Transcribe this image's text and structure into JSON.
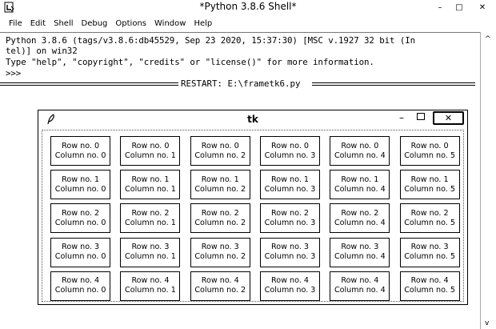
{
  "window": {
    "title": "*Python 3.8.6 Shell*",
    "app_icon": "idle-icon",
    "controls": {
      "minimize": "–",
      "maximize": "□",
      "close": "✕"
    }
  },
  "menu": [
    "File",
    "Edit",
    "Shell",
    "Debug",
    "Options",
    "Window",
    "Help"
  ],
  "shell": {
    "lines": [
      "Python 3.8.6 (tags/v3.8.6:db45529, Sep 23 2020, 15:37:30) [MSC v.1927 32 bit (In",
      "tel)] on win32",
      "Type \"help\", \"copyright\", \"credits\" or \"license()\" for more information.",
      ">>>"
    ],
    "restart": "RESTART: E:\\frametk6.py"
  },
  "tk": {
    "title": "tk",
    "icon": "feather-icon",
    "grid": [
      [
        [
          "Row no. 0",
          "Column no. 0"
        ],
        [
          "Row no. 0",
          "Column no. 1"
        ],
        [
          "Row no. 0",
          "Column no. 2"
        ],
        [
          "Row no. 0",
          "Column no. 3"
        ],
        [
          "Row no. 0",
          "Column no. 4"
        ],
        [
          "Row no. 0",
          "Column no. 5"
        ]
      ],
      [
        [
          "Row no. 1",
          "Column no. 0"
        ],
        [
          "Row no. 1",
          "Column no. 1"
        ],
        [
          "Row no. 1",
          "Column no. 2"
        ],
        [
          "Row no. 1",
          "Column no. 3"
        ],
        [
          "Row no. 1",
          "Column no. 4"
        ],
        [
          "Row no. 1",
          "Column no. 5"
        ]
      ],
      [
        [
          "Row no. 2",
          "Column no. 0"
        ],
        [
          "Row no. 2",
          "Column no. 1"
        ],
        [
          "Row no. 2",
          "Column no. 2"
        ],
        [
          "Row no. 2",
          "Column no. 3"
        ],
        [
          "Row no. 2",
          "Column no. 4"
        ],
        [
          "Row no. 2",
          "Column no. 5"
        ]
      ],
      [
        [
          "Row no. 3",
          "Column no. 0"
        ],
        [
          "Row no. 3",
          "Column no. 1"
        ],
        [
          "Row no. 3",
          "Column no. 2"
        ],
        [
          "Row no. 3",
          "Column no. 3"
        ],
        [
          "Row no. 3",
          "Column no. 4"
        ],
        [
          "Row no. 3",
          "Column no. 5"
        ]
      ],
      [
        [
          "Row no. 4",
          "Column no. 0"
        ],
        [
          "Row no. 4",
          "Column no. 1"
        ],
        [
          "Row no. 4",
          "Column no. 2"
        ],
        [
          "Row no. 4",
          "Column no. 3"
        ],
        [
          "Row no. 4",
          "Column no. 4"
        ],
        [
          "Row no. 4",
          "Column no. 5"
        ]
      ]
    ]
  }
}
